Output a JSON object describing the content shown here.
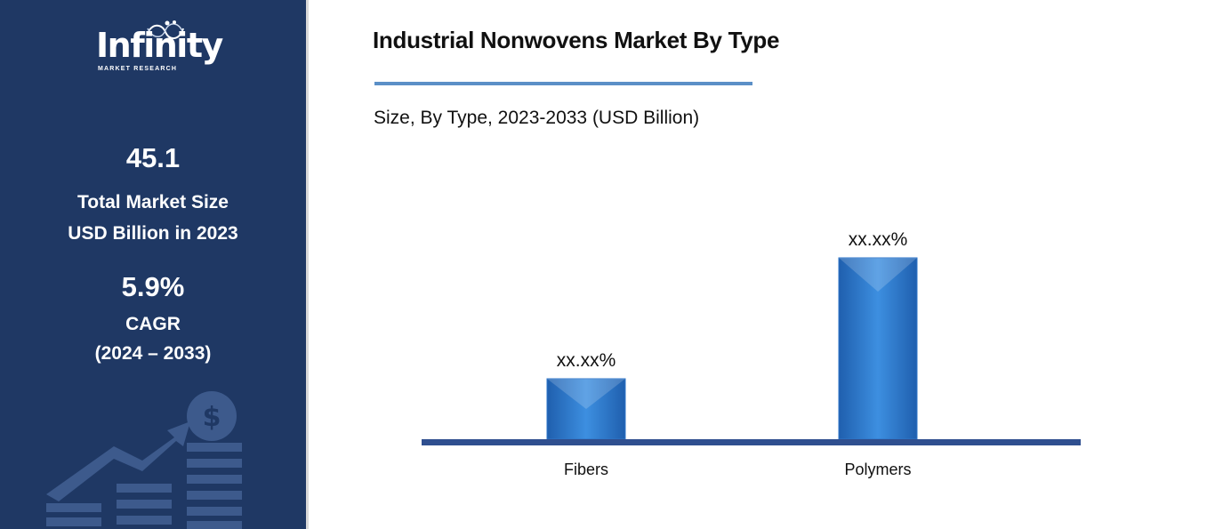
{
  "brand": {
    "logo_word": "Infinity",
    "logo_sub": "MARKET RESEARCH"
  },
  "side_stats": {
    "market_size_value": "45.1",
    "market_size_line1": "Total Market Size",
    "market_size_line2": "USD Billion in 2023",
    "cagr_value": "5.9%",
    "cagr_line1": "CAGR",
    "cagr_line2": "(2024 – 2033)"
  },
  "colors": {
    "panel": "#1f3864",
    "bar": "#2e75c8",
    "axis": "#2f4f8f",
    "rule": "#5b8fc7"
  },
  "chart_data": {
    "type": "bar",
    "title": "Industrial Nonwovens Market By Type",
    "subtitle": "Size, By Type, 2023-2033 (USD Billion)",
    "categories": [
      "Fibers",
      "Polymers"
    ],
    "values": [
      1,
      3
    ],
    "data_labels": [
      "xx.xx%",
      "xx.xx%"
    ],
    "xlabel": "",
    "ylabel": "",
    "grid": false,
    "legend": "none"
  }
}
